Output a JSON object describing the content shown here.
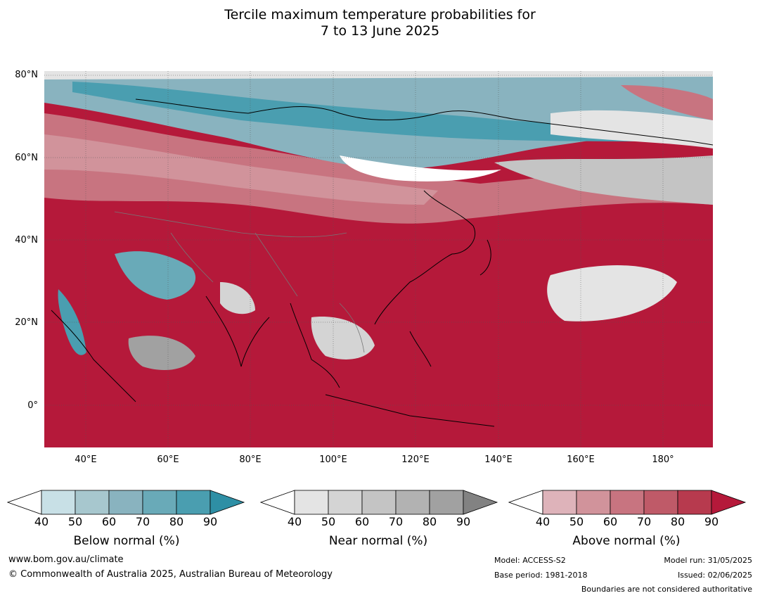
{
  "title": {
    "line1": "Tercile maximum temperature probabilities for",
    "line2": "7 to 13 June 2025"
  },
  "map": {
    "lat_labels": [
      "80°N",
      "60°N",
      "40°N",
      "20°N",
      "0°"
    ],
    "lon_labels": [
      "40°E",
      "60°E",
      "80°E",
      "100°E",
      "120°E",
      "140°E",
      "160°E",
      "180°"
    ]
  },
  "colorbars": [
    {
      "label": "Below normal (%)",
      "ticks": [
        "40",
        "50",
        "60",
        "70",
        "80",
        "90"
      ],
      "colors": [
        "#c8e0e6",
        "#a7c7ce",
        "#89b3bf",
        "#69aab8",
        "#4a9eb0",
        "#2e8fa5"
      ]
    },
    {
      "label": "Near normal (%)",
      "ticks": [
        "40",
        "50",
        "60",
        "70",
        "80",
        "90"
      ],
      "colors": [
        "#e4e4e4",
        "#d4d4d4",
        "#c4c4c4",
        "#b2b2b2",
        "#a1a1a1",
        "#828282"
      ]
    },
    {
      "label": "Above normal (%)",
      "ticks": [
        "40",
        "50",
        "60",
        "70",
        "80",
        "90"
      ],
      "colors": [
        "#deb3ba",
        "#d1939b",
        "#c87480",
        "#bf5a68",
        "#b73a4e",
        "#b5193a"
      ]
    }
  ],
  "footer": {
    "url": "www.bom.gov.au/climate",
    "copyright": "© Commonwealth of Australia 2025, Australian Bureau of Meteorology",
    "model": "Model: ACCESS-S2",
    "base_period": "Base period: 1981-2018",
    "model_run": "Model run: 31/05/2025",
    "issued": "Issued: 02/06/2025",
    "disclaimer": "Boundaries are not considered authoritative"
  }
}
